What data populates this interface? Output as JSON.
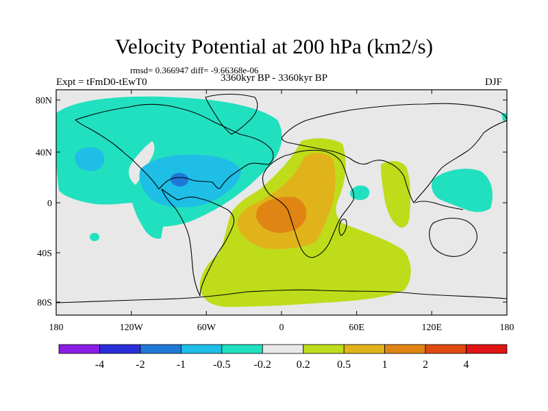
{
  "header": {
    "title": "Velocity Potential at 200 hPa (km2/s)",
    "stats": "rmsd= 0.366947 diff= -9.66368e-06",
    "experiment": "Expt = tFmD0-tEwT0",
    "period": "3360kyr BP - 3360kyr BP",
    "season": "DJF"
  },
  "axes": {
    "x_ticks": [
      "180",
      "120W",
      "60W",
      "0",
      "60E",
      "120E",
      "180"
    ],
    "y_ticks": [
      "80N",
      "40N",
      "0",
      "40S",
      "80S"
    ]
  },
  "colorbar": {
    "colors": [
      "#8a1ee6",
      "#2a2ed8",
      "#1e78d8",
      "#1ebee6",
      "#21e0bf",
      "#e8e8e8",
      "#bedc1a",
      "#e0b31a",
      "#e08414",
      "#e04a10",
      "#e01414"
    ],
    "labels": [
      "-4",
      "-2",
      "-1",
      "-0.5",
      "-0.2",
      "0.2",
      "0.5",
      "1",
      "2",
      "4"
    ]
  },
  "legend_colors": {
    "neutral": "#e8e8e8",
    "neg_weak": "#21e0bf",
    "neg_mid": "#1ebee6",
    "neg_strong": "#1e78d8",
    "pos_weak": "#bedc1a",
    "pos_mid": "#e0b31a",
    "pos_strong": "#e08414"
  }
}
